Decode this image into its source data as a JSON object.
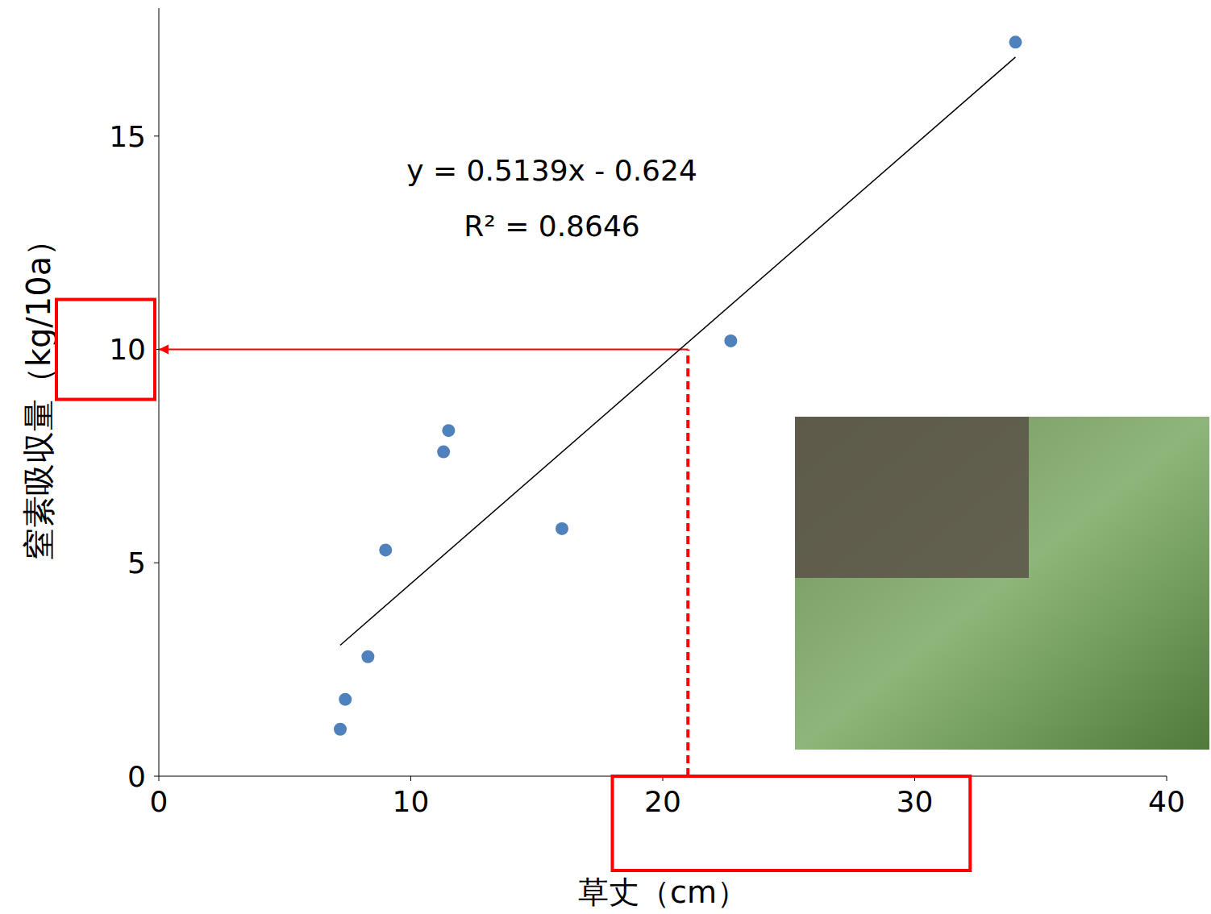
{
  "chart_data": {
    "type": "scatter",
    "x_label": "草丈（cm）",
    "y_label": "窒素吸収量（kg/10a）",
    "x": [
      7.2,
      7.4,
      8.3,
      9.0,
      11.3,
      11.5,
      16.0,
      22.7,
      34.0
    ],
    "values": [
      1.1,
      1.8,
      2.8,
      5.3,
      7.6,
      8.1,
      5.8,
      10.2,
      17.2
    ],
    "color": "#4f81bd",
    "marker": "circle",
    "xlim": [
      0,
      40
    ],
    "xticks": [
      0,
      10,
      20,
      30,
      40
    ],
    "ylim": [
      0,
      18
    ],
    "yticks": [
      0,
      5,
      10,
      15
    ],
    "grid": false,
    "trendline": {
      "x": [
        7.2,
        34.0
      ],
      "values": [
        3.07,
        16.85
      ],
      "color": "#000000"
    },
    "annotations": [
      "y = 0.5139x - 0.624",
      "R² = 0.8646"
    ],
    "reference": {
      "x": 21,
      "y": 10,
      "color": "#ff0000"
    }
  }
}
